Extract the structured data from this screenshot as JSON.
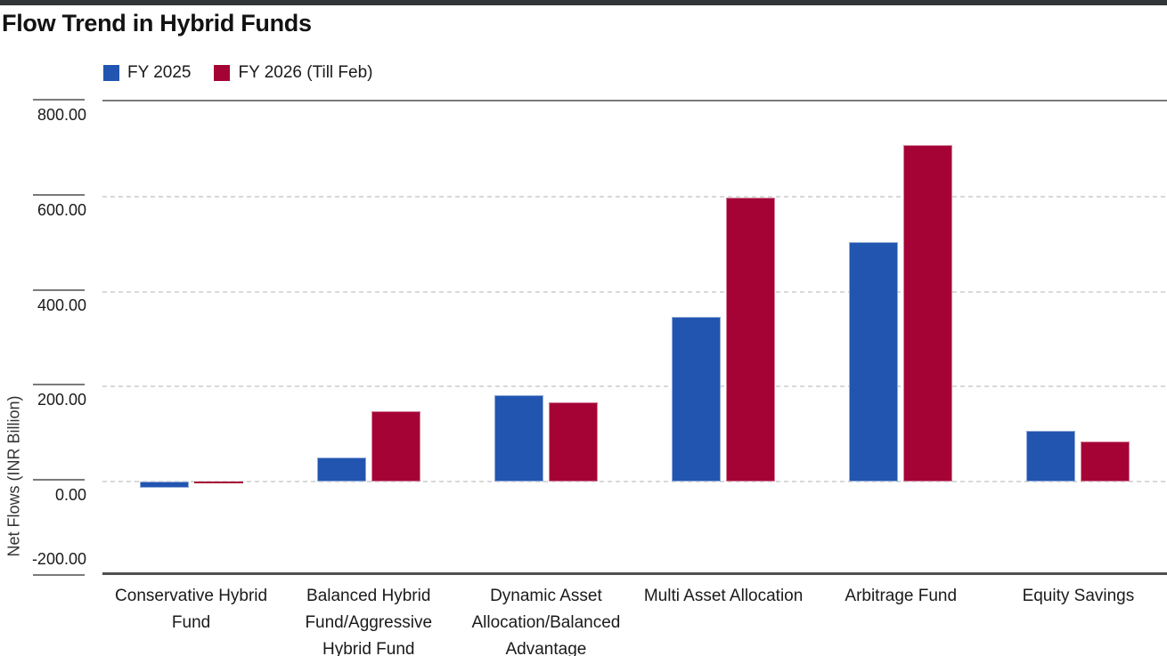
{
  "page": {
    "title": "Flow Trend in Hybrid Funds"
  },
  "legend": {
    "items": [
      {
        "label": "FY 2025",
        "color": "#2155b0"
      },
      {
        "label": "FY 2026 (Till Feb)",
        "color": "#a50336"
      }
    ]
  },
  "chart_data": {
    "type": "bar",
    "title": "Flow Trend in Hybrid Funds",
    "xlabel": "",
    "ylabel": "Net Flows (INR Billion)",
    "ylim": [
      -200,
      800
    ],
    "yticks": [
      800,
      600,
      400,
      200,
      0,
      -200
    ],
    "ytick_labels": [
      "800.00",
      "600.00",
      "400.00",
      "200.00",
      "0.00",
      "-200.00"
    ],
    "grid": "horizontal dotted at 600/400/200/0, solid gray line at 800, solid dark axis at -200",
    "legend_position": "top-left",
    "categories": [
      "Conservative Hybrid Fund",
      "Balanced Hybrid Fund/Aggressive Hybrid Fund",
      "Dynamic Asset Allocation/Balanced Advantage",
      "Multi Asset Allocation",
      "Arbitrage Fund",
      "Equity Savings"
    ],
    "series": [
      {
        "name": "FY 2025",
        "color": "#2155b0",
        "values": [
          -12,
          51,
          183,
          347,
          504,
          107
        ]
      },
      {
        "name": "FY 2026 (Till Feb)",
        "color": "#a50336",
        "values": [
          -3,
          149,
          168,
          598,
          709,
          84
        ]
      }
    ]
  }
}
